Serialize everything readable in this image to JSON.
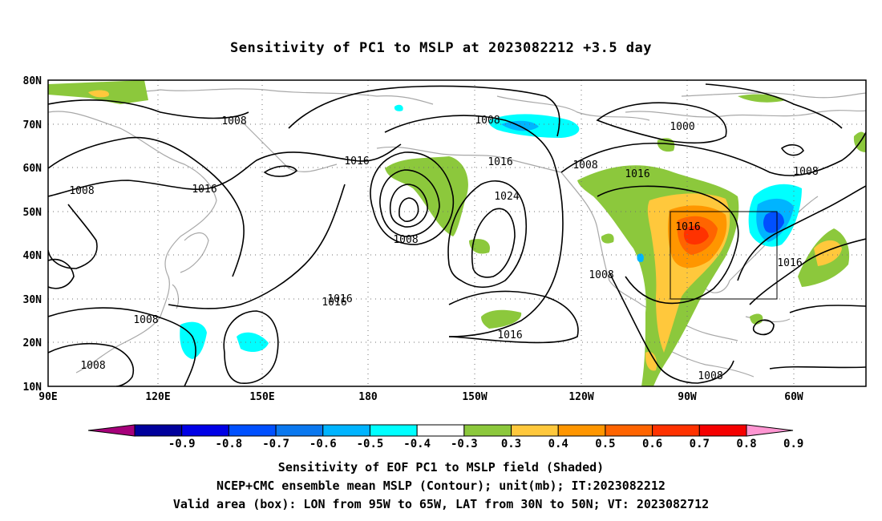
{
  "title": "Sensitivity of PC1 to MSLP at 2023082212 +3.5 day",
  "lat_labels": [
    "80N",
    "70N",
    "60N",
    "50N",
    "40N",
    "30N",
    "20N",
    "10N"
  ],
  "lon_labels": [
    "90E",
    "120E",
    "150E",
    "180",
    "150W",
    "120W",
    "90W",
    "60W"
  ],
  "contour_labels": [
    "1008",
    "1008",
    "1016",
    "1008",
    "1016",
    "1016",
    "1008",
    "1016",
    "1024",
    "1016",
    "1016",
    "1008",
    "1016",
    "1008",
    "1000",
    "1008",
    "1016",
    "1008",
    "1016",
    "1008",
    "1008",
    "1016"
  ],
  "colorbar": {
    "labels": [
      "-0.9",
      "-0.8",
      "-0.7",
      "-0.6",
      "-0.5",
      "-0.4",
      "-0.3",
      "0.3",
      "0.4",
      "0.5",
      "0.6",
      "0.7",
      "0.8",
      "0.9"
    ],
    "colors": [
      "#a6007a",
      "#00009c",
      "#0000e6",
      "#0050ff",
      "#0a78ef",
      "#00b4ff",
      "#00ffff",
      "#ffffff",
      "#8cc83c",
      "#ffc83c",
      "#ff9600",
      "#ff6400",
      "#ff3200",
      "#f50000",
      "#ff96d2"
    ]
  },
  "valid_box": {
    "lon": [
      -95,
      -65
    ],
    "lat": [
      30,
      50
    ]
  },
  "captions": [
    "Sensitivity of EOF PC1 to MSLP field (Shaded)",
    "NCEP+CMC ensemble mean MSLP (Contour); unit(mb); IT:2023082212",
    "Valid area (box): LON from 95W to 65W, LAT from 30N to 50N; VT: 2023082712"
  ]
}
